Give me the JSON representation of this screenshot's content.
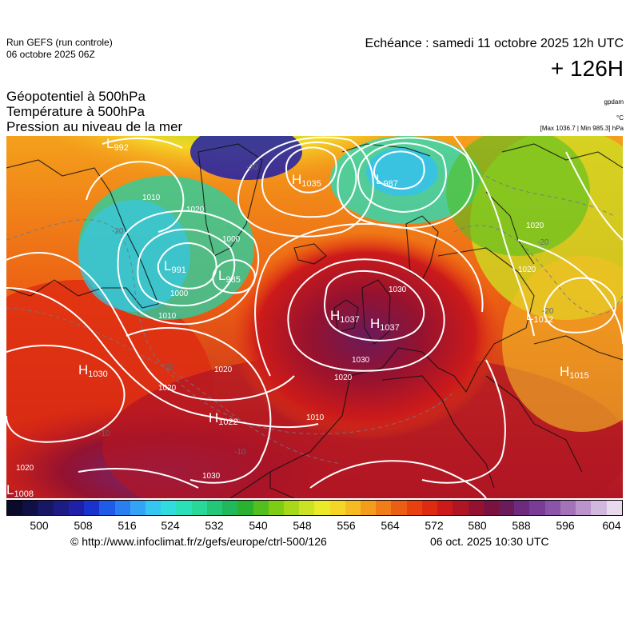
{
  "header": {
    "run": "Run GEFS (run controle)",
    "run_date": "06 octobre 2025 06Z",
    "echeance": "Echéance : samedi 11 octobre 2025 12h UTC",
    "offset": "+ 126H"
  },
  "titles": {
    "line1": "Géopotentiel à 500hPa",
    "line2": "Température à 500hPa",
    "line3": "Pression au niveau de la mer"
  },
  "units": {
    "gpdam": "gpdam",
    "celsius": "°C",
    "maxmin": "[Max 1036.7 | Min 985.3] hPa"
  },
  "pressure_centers": [
    {
      "type": "L",
      "value": "992"
    },
    {
      "type": "H",
      "value": "1035"
    },
    {
      "type": "L",
      "value": "987"
    },
    {
      "type": "L",
      "value": "991"
    },
    {
      "type": "L",
      "value": "985"
    },
    {
      "type": "H",
      "value": "1037"
    },
    {
      "type": "H",
      "value": "1037"
    },
    {
      "type": "L",
      "value": "1012"
    },
    {
      "type": "H",
      "value": "1030"
    },
    {
      "type": "H",
      "value": "1022"
    },
    {
      "type": "H",
      "value": "1015"
    },
    {
      "type": "L",
      "value": "1008"
    }
  ],
  "isobar_labels": [
    "1010",
    "1020",
    "1000",
    "1010",
    "1020",
    "1000",
    "1020",
    "1010",
    "1020",
    "1030",
    "1030",
    "1020",
    "1020",
    "1020",
    "1030"
  ],
  "temperature_labels": [
    "-20",
    "-20",
    "-20",
    "-20",
    "-10",
    "-10",
    "-30"
  ],
  "legend": {
    "colors": [
      "#0a0a2a",
      "#101046",
      "#171763",
      "#1c1c84",
      "#1f1fa8",
      "#1a33cc",
      "#1f5ae8",
      "#2a7ff0",
      "#33a4f5",
      "#36c6f2",
      "#30dce0",
      "#2ae0b8",
      "#28d898",
      "#22c878",
      "#1fb85a",
      "#2ab22f",
      "#52bf1f",
      "#7fcc14",
      "#a8d81a",
      "#cce323",
      "#eaea28",
      "#f5d627",
      "#f7bb22",
      "#f49d1c",
      "#f07d17",
      "#ec5e13",
      "#e8400f",
      "#df2a12",
      "#cc1a1a",
      "#b01524",
      "#941230",
      "#7a1240",
      "#6b1a5a",
      "#6e2a7e",
      "#7a3c96",
      "#8c54a8",
      "#a372b8",
      "#bb94cc",
      "#d3b8de",
      "#e8d9ee"
    ],
    "ticks": [
      "500",
      "508",
      "516",
      "524",
      "532",
      "540",
      "548",
      "556",
      "564",
      "572",
      "580",
      "588",
      "596",
      "604"
    ]
  },
  "footer": {
    "source": "© http://www.infoclimat.fr/z/gefs/europe/ctrl-500/126",
    "generated": "06 oct. 2025 10:30 UTC"
  }
}
